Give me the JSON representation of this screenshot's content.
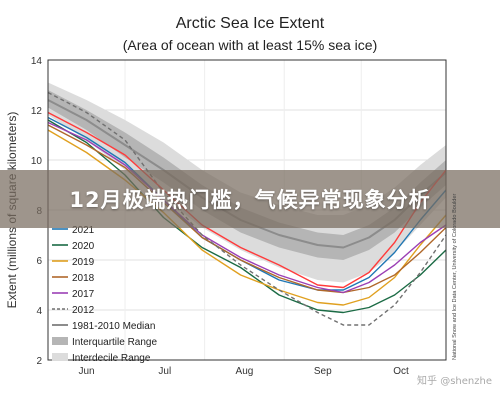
{
  "chart_data": {
    "type": "line",
    "title": "Arctic Sea Ice Extent",
    "subtitle": "(Area of ocean with at least 15% sea ice)",
    "ylabel": "Extent (millions of square kilometers)",
    "xlabel": "",
    "x_ticks": [
      "Jun",
      "Jul",
      "Aug",
      "Sep",
      "Oct"
    ],
    "y_ticks": [
      2,
      4,
      6,
      8,
      10,
      12,
      14
    ],
    "ylim": [
      2,
      14
    ],
    "xlim": [
      0,
      155
    ],
    "x_unit_note": "days after June 1",
    "grid": true,
    "legend_position": "bottom-left",
    "median": {
      "name": "1981-2010 Median",
      "color": "#8c8c8c",
      "x": [
        0,
        15,
        30,
        45,
        60,
        75,
        90,
        105,
        115,
        125,
        135,
        145,
        155
      ],
      "y": [
        12.4,
        11.6,
        10.6,
        9.6,
        8.5,
        7.6,
        7.0,
        6.6,
        6.5,
        6.9,
        7.6,
        8.6,
        9.5
      ]
    },
    "interquartile_range": {
      "name": "Interquartile Range",
      "color": "#b5b5b5",
      "x": [
        0,
        15,
        30,
        45,
        60,
        75,
        90,
        105,
        115,
        125,
        135,
        145,
        155
      ],
      "low": [
        12.1,
        11.2,
        10.1,
        9.1,
        8.0,
        7.1,
        6.5,
        6.1,
        6.0,
        6.4,
        7.1,
        8.1,
        9.0
      ],
      "high": [
        12.8,
        12.0,
        11.1,
        10.1,
        9.0,
        8.1,
        7.5,
        7.1,
        7.0,
        7.4,
        8.1,
        9.1,
        10.0
      ]
    },
    "interdecile_range": {
      "name": "Interdecile Range",
      "color": "#dcdcdc",
      "x": [
        0,
        15,
        30,
        45,
        60,
        75,
        90,
        105,
        115,
        125,
        135,
        145,
        155
      ],
      "low": [
        11.8,
        10.8,
        9.6,
        8.5,
        7.3,
        6.4,
        5.7,
        5.2,
        5.1,
        5.5,
        6.3,
        7.4,
        8.5
      ],
      "high": [
        13.1,
        12.4,
        11.6,
        10.7,
        9.6,
        8.7,
        8.2,
        7.8,
        7.8,
        8.2,
        8.9,
        9.8,
        10.6
      ]
    },
    "series": [
      {
        "name": "2021",
        "color": "#1f77b4",
        "dash": false,
        "x": [
          0,
          15,
          30,
          45,
          60,
          75,
          90,
          105,
          115,
          125,
          135,
          145,
          155
        ],
        "y": [
          11.7,
          10.9,
          9.9,
          8.4,
          6.9,
          6.0,
          5.2,
          4.8,
          4.8,
          5.3,
          6.3,
          7.6,
          8.8
        ]
      },
      {
        "name": "2020",
        "color": "#1b6b45",
        "dash": false,
        "x": [
          0,
          15,
          30,
          45,
          60,
          75,
          90,
          105,
          115,
          125,
          135,
          145,
          155
        ],
        "y": [
          11.6,
          10.7,
          9.4,
          7.7,
          6.5,
          5.7,
          4.6,
          4.0,
          3.9,
          4.1,
          4.6,
          5.4,
          6.4
        ]
      },
      {
        "name": "2019",
        "color": "#e0a020",
        "dash": false,
        "x": [
          0,
          15,
          30,
          45,
          60,
          75,
          90,
          105,
          115,
          125,
          135,
          145,
          155
        ],
        "y": [
          11.2,
          10.3,
          9.2,
          7.9,
          6.4,
          5.4,
          4.8,
          4.3,
          4.2,
          4.5,
          5.3,
          6.6,
          7.8
        ]
      },
      {
        "name": "2018",
        "color": "#b0682a",
        "dash": false,
        "x": [
          0,
          15,
          30,
          45,
          60,
          75,
          90,
          105,
          115,
          125,
          135,
          145,
          155
        ],
        "y": [
          11.4,
          10.6,
          9.7,
          8.3,
          6.9,
          6.0,
          5.3,
          4.8,
          4.7,
          4.9,
          5.4,
          6.3,
          7.3
        ]
      },
      {
        "name": "2017",
        "color": "#9b3fb5",
        "dash": false,
        "x": [
          0,
          15,
          30,
          45,
          60,
          75,
          90,
          105,
          115,
          125,
          135,
          145,
          155
        ],
        "y": [
          11.5,
          10.8,
          9.8,
          8.4,
          7.0,
          6.1,
          5.4,
          4.9,
          4.7,
          5.1,
          5.8,
          6.7,
          7.4
        ]
      },
      {
        "name": "2012",
        "color": "#707070",
        "dash": true,
        "x": [
          0,
          15,
          30,
          45,
          60,
          75,
          90,
          105,
          115,
          125,
          135,
          145,
          155
        ],
        "y": [
          12.7,
          11.9,
          10.8,
          8.7,
          7.0,
          5.8,
          4.8,
          3.9,
          3.4,
          3.4,
          4.2,
          5.5,
          7.0
        ]
      },
      {
        "name": "2022",
        "color": "#ff3b3b",
        "dash": false,
        "x": [
          0,
          15,
          30,
          45,
          60,
          75,
          90,
          105,
          115,
          125,
          135,
          145,
          155
        ],
        "y": [
          11.9,
          11.1,
          10.2,
          8.8,
          7.4,
          6.5,
          5.8,
          5.0,
          4.9,
          5.5,
          6.7,
          8.3,
          9.6
        ]
      }
    ],
    "legend_visible": [
      "2021",
      "2020",
      "2019",
      "2018",
      "2017",
      "2012",
      "1981-2010 Median",
      "Interquartile Range",
      "Interdecile Range"
    ]
  },
  "banner_text": "12月极端热门槛，气候异常现象分析",
  "credit_text": "National Snow and Ice Data Center, University of Colorado Boulder",
  "watermark": "知乎 @shenzhe"
}
